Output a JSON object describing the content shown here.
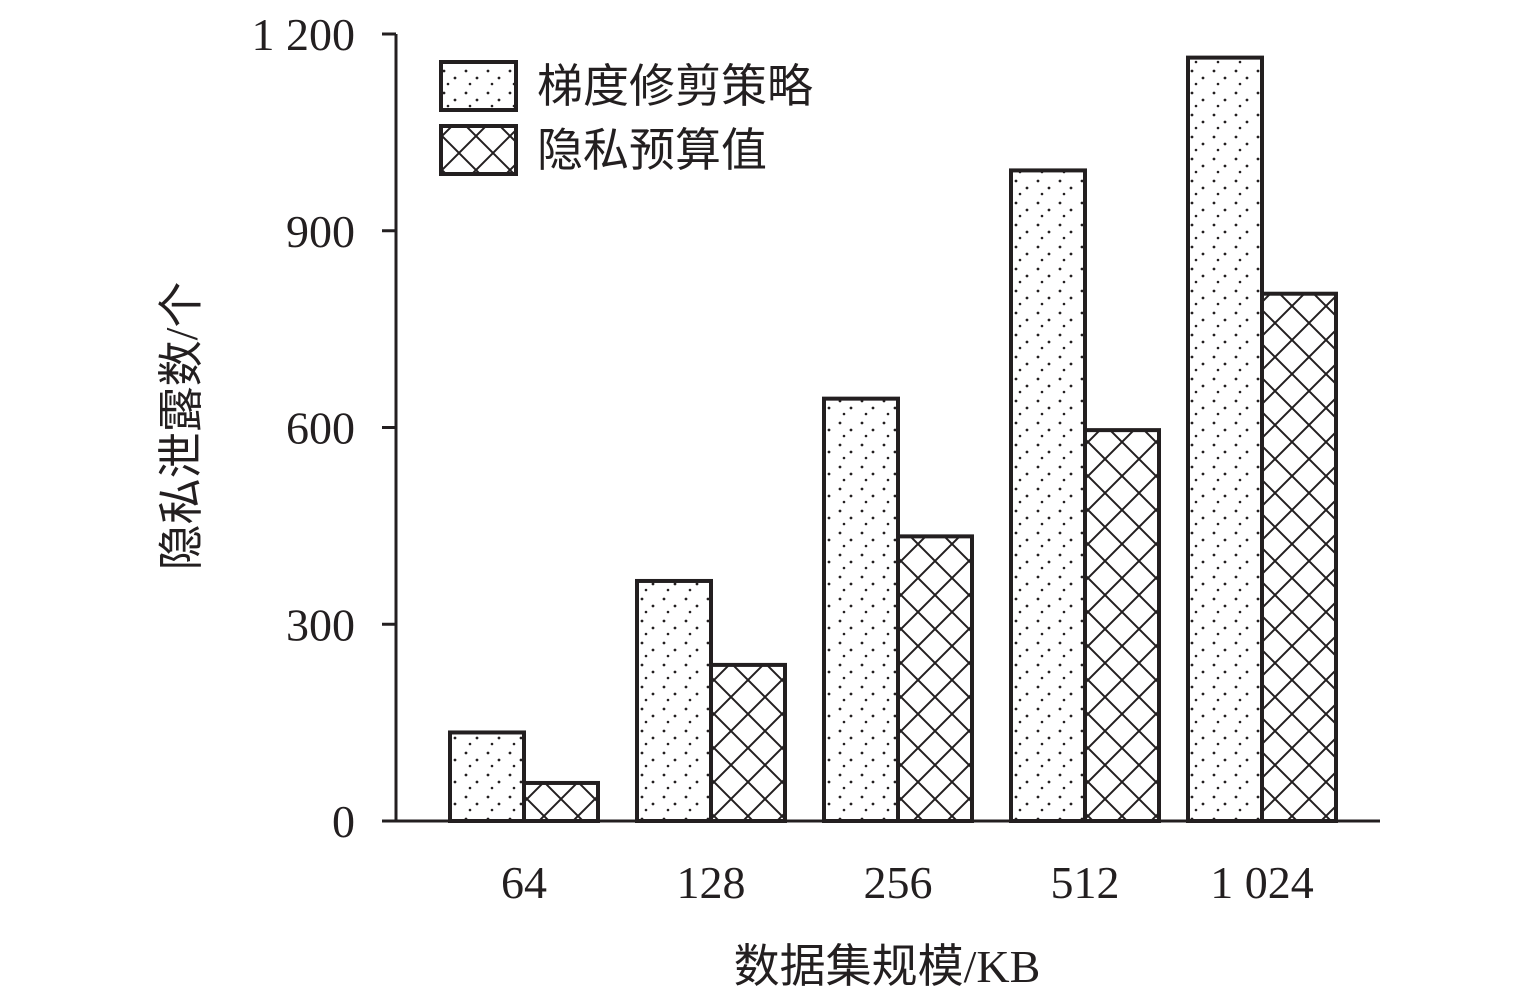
{
  "chart_data": {
    "type": "bar",
    "categories": [
      "64",
      "128",
      "256",
      "512",
      "1 024"
    ],
    "series": [
      {
        "name": "梯度修剪策略",
        "values": [
          135,
          366,
          644,
          992,
          1164
        ],
        "pattern": "dots"
      },
      {
        "name": "隐私预算值",
        "values": [
          58,
          238,
          434,
          596,
          804
        ],
        "pattern": "crosshatch"
      }
    ],
    "xlabel": "数据集规模/KB",
    "ylabel": "隐私泄露数/个",
    "ylim": [
      0,
      1200
    ],
    "yticks": [
      0,
      300,
      600,
      900,
      1200
    ],
    "ytick_labels": [
      "0",
      "300",
      "600",
      "900",
      "1 200"
    ],
    "grid": false,
    "legend_position": "top-left"
  },
  "colors": {
    "ink": "#231f20",
    "background": "#ffffff"
  }
}
